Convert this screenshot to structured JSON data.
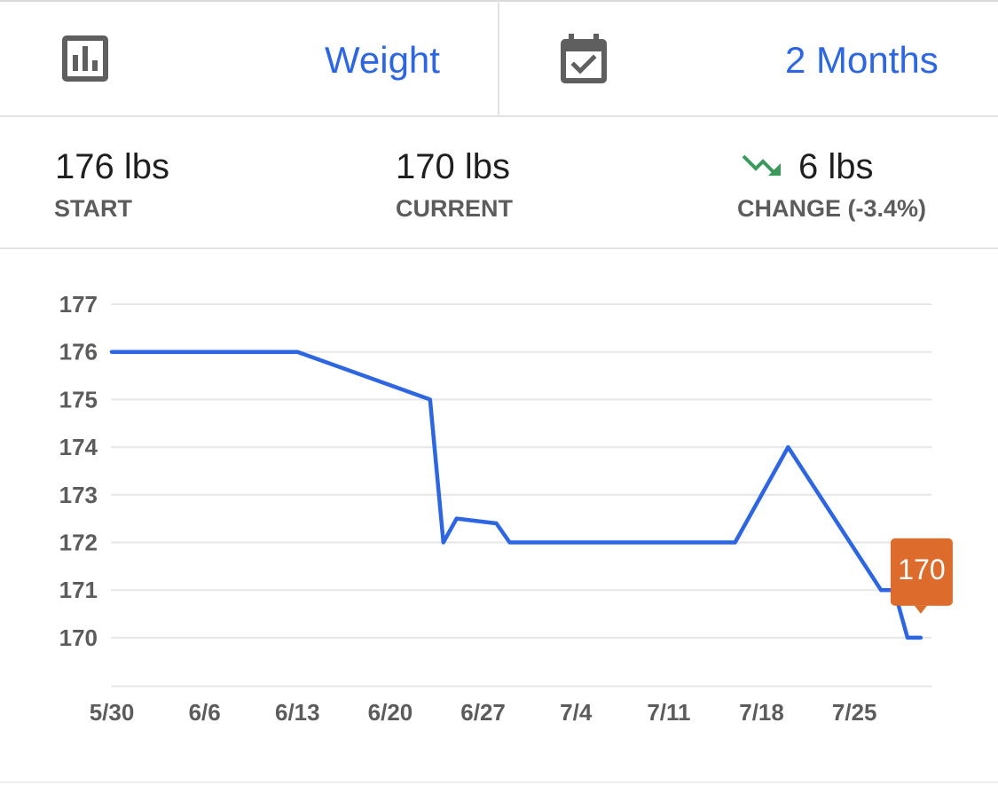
{
  "header": {
    "metric_icon": "bar-chart-icon",
    "metric_label": "Weight",
    "range_icon": "calendar-check-icon",
    "range_label": "2 Months"
  },
  "stats": {
    "start": {
      "value": "176 lbs",
      "label": "START"
    },
    "current": {
      "value": "170 lbs",
      "label": "CURRENT"
    },
    "change": {
      "icon": "trending-down-icon",
      "value": "6 lbs",
      "label": "CHANGE (-3.4%)"
    }
  },
  "colors": {
    "accent": "#2b66e4",
    "line": "#2d66e3",
    "callout": "#dd6b2c",
    "trend_down": "#3a9a5c",
    "grid": "#e6e6e6",
    "label": "#5c5c5c"
  },
  "chart_data": {
    "type": "line",
    "title": "",
    "xlabel": "",
    "ylabel": "",
    "ylim": [
      169,
      177
    ],
    "x_ticks": [
      "5/30",
      "6/6",
      "6/13",
      "6/20",
      "6/27",
      "7/4",
      "7/11",
      "7/18",
      "7/25"
    ],
    "y_ticks": [
      170,
      171,
      172,
      173,
      174,
      175,
      176,
      177
    ],
    "grid": true,
    "series": [
      {
        "x": [
          "5/30",
          "6/13",
          "6/23",
          "6/24",
          "6/25",
          "6/28",
          "6/29",
          "7/16",
          "7/20",
          "7/27",
          "7/28",
          "7/29",
          "7/30"
        ],
        "y": [
          176,
          176,
          175,
          172,
          172.5,
          172.4,
          172,
          172,
          174,
          171,
          171,
          170,
          170
        ]
      }
    ],
    "callout": {
      "text": "170",
      "x": "7/30",
      "y": 170
    }
  }
}
